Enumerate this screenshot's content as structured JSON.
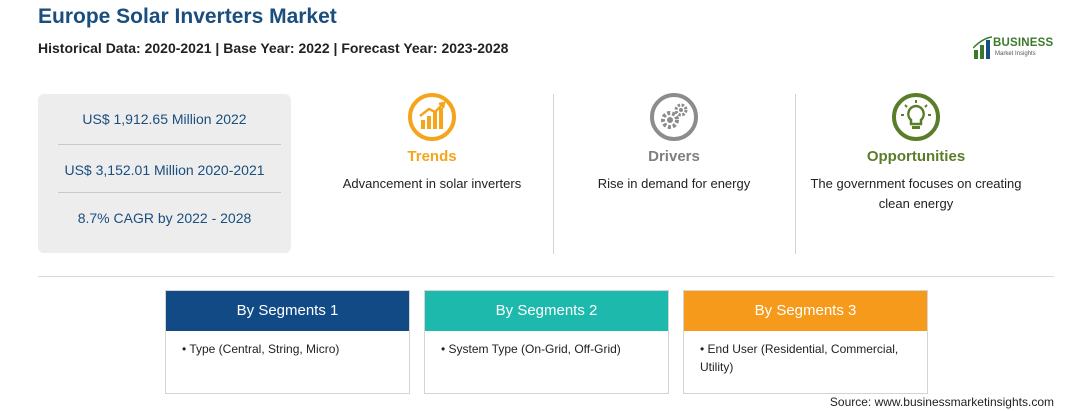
{
  "header": {
    "title": "Europe Solar Inverters Market",
    "subtitle": "Historical Data: 2020-2021 | Base Year: 2022 | Forecast Year: 2023-2028",
    "logo_text": "BUSINESS",
    "logo_sub": "Market Insights"
  },
  "stats": [
    "US$ 1,912.65 Million 2022",
    "US$ 3,152.01 Million 2020-2021",
    "8.7% CAGR by 2022 - 2028"
  ],
  "columns": [
    {
      "title": "Trends",
      "desc": "Advancement in solar inverters",
      "color": "#f5a51c",
      "icon": "trend-chart-icon"
    },
    {
      "title": "Drivers",
      "desc": "Rise in demand for energy",
      "color": "#8c8c8c",
      "icon": "gears-icon"
    },
    {
      "title": "Opportunities",
      "desc": "The government focuses on creating clean energy",
      "color": "#5a7d2a",
      "icon": "lightbulb-icon"
    }
  ],
  "segments": [
    {
      "title": "By Segments 1",
      "item": "• Type (Central, String, Micro)",
      "color": "#124a86"
    },
    {
      "title": "By Segments 2",
      "item": "• System Type (On-Grid, Off-Grid)",
      "color": "#1eb9ad"
    },
    {
      "title": "By Segments 3",
      "item": "• End User (Residential, Commercial, Utility)",
      "color": "#f59a1b"
    }
  ],
  "source": "Source: www.businessmarketinsights.com"
}
